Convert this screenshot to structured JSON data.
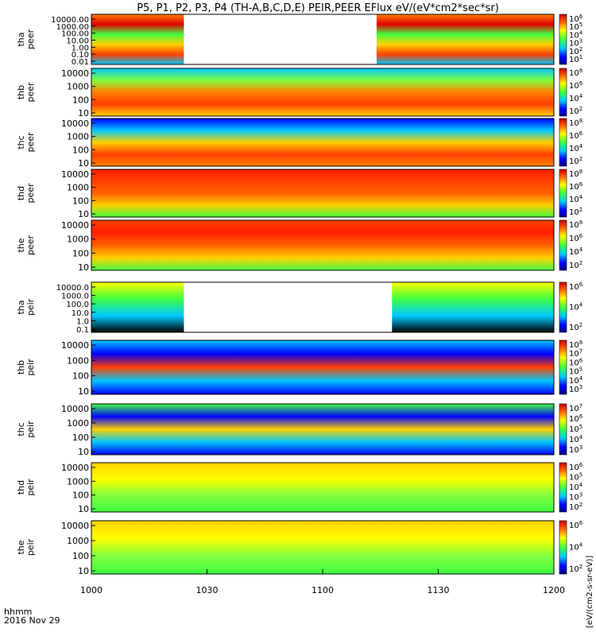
{
  "chart_data": {
    "type": "heatmap",
    "title": "P5, P1, P2, P3, P4 (TH-A,B,C,D,E) PEIR,PEER EFlux eV/(eV*cm2*sec*sr)",
    "time_axis": {
      "labels": [
        "1000",
        "1030",
        "1100",
        "1130",
        "1200"
      ],
      "values_min": [
        600,
        630,
        660,
        690,
        720
      ],
      "range_min": [
        600,
        720
      ],
      "corner_label_1": "hhmm",
      "corner_label_2": "2016 Nov 29"
    },
    "colorbar_unit_label": "[eV/(cm2-s-sr-eV)]",
    "panels": [
      {
        "id": "tha_peer",
        "label_1": "tha",
        "label_2": "peer",
        "yticks": [
          "10000.00",
          "1000.00",
          "100.00",
          "10.00",
          "1.00",
          "0.10",
          "0.01"
        ],
        "cbticks": [
          "10^6",
          "10^5",
          "10^4",
          "10^3",
          "10^2",
          "10^1"
        ],
        "gaps": [
          [
            624,
            674
          ]
        ]
      },
      {
        "id": "thb_peer",
        "label_1": "thb",
        "label_2": "peer",
        "yticks": [
          "10000",
          "1000",
          "100",
          "10"
        ],
        "cbticks": [
          "10^8",
          "10^6",
          "10^4",
          "10^2"
        ],
        "gaps": []
      },
      {
        "id": "thc_peer",
        "label_1": "thc",
        "label_2": "peer",
        "yticks": [
          "10000",
          "1000",
          "100",
          "10"
        ],
        "cbticks": [
          "10^8",
          "10^6",
          "10^4",
          "10^2"
        ],
        "gaps": []
      },
      {
        "id": "thd_peer",
        "label_1": "thd",
        "label_2": "peer",
        "yticks": [
          "10000",
          "1000",
          "100",
          "10"
        ],
        "cbticks": [
          "10^8",
          "10^6",
          "10^4",
          "10^2"
        ],
        "gaps": []
      },
      {
        "id": "the_peer",
        "label_1": "the",
        "label_2": "peer",
        "yticks": [
          "10000",
          "1000",
          "100",
          "10"
        ],
        "cbticks": [
          "10^8",
          "10^6",
          "10^4",
          "10^2"
        ],
        "gaps": []
      },
      {
        "id": "tha_peir",
        "label_1": "tha",
        "label_2": "peir",
        "yticks": [
          "10000.0",
          "1000.0",
          "100.0",
          "10.0",
          "1.0",
          "0.1"
        ],
        "cbticks": [
          "10^6",
          "10^4",
          "10^2"
        ],
        "gaps": [
          [
            624,
            678
          ]
        ]
      },
      {
        "id": "thb_peir",
        "label_1": "thb",
        "label_2": "peir",
        "yticks": [
          "10000",
          "1000",
          "100",
          "10"
        ],
        "cbticks": [
          "10^8",
          "10^7",
          "10^6",
          "10^5",
          "10^4",
          "10^3"
        ],
        "gaps": []
      },
      {
        "id": "thc_peir",
        "label_1": "thc",
        "label_2": "peir",
        "yticks": [
          "10000",
          "1000",
          "100",
          "10"
        ],
        "cbticks": [
          "10^7",
          "10^6",
          "10^5",
          "10^4",
          "10^3"
        ],
        "gaps": []
      },
      {
        "id": "thd_peir",
        "label_1": "thd",
        "label_2": "peir",
        "yticks": [
          "10000",
          "1000",
          "100",
          "10"
        ],
        "cbticks": [
          "10^6",
          "10^5",
          "10^4",
          "10^3",
          "10^2"
        ],
        "gaps": []
      },
      {
        "id": "the_peir",
        "label_1": "the",
        "label_2": "peir",
        "yticks": [
          "10000",
          "1000",
          "100",
          "10"
        ],
        "cbticks": [
          "10^6",
          "10^4",
          "10^2"
        ],
        "gaps": []
      }
    ]
  }
}
